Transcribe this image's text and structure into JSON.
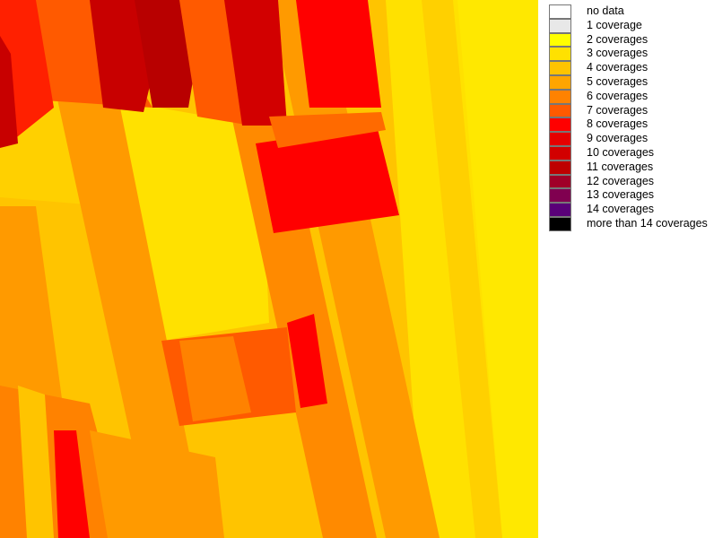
{
  "legend": {
    "items": [
      {
        "label": "no data",
        "color": "#ffffff"
      },
      {
        "label": "1 coverage",
        "color": "#e8e8e8"
      },
      {
        "label": "2 coverages",
        "color": "#ffff00"
      },
      {
        "label": "3 coverages",
        "color": "#ffe100"
      },
      {
        "label": "4 coverages",
        "color": "#ffc400"
      },
      {
        "label": "5 coverages",
        "color": "#ffa500"
      },
      {
        "label": "6 coverages",
        "color": "#ff8200"
      },
      {
        "label": "7 coverages",
        "color": "#ff5a00"
      },
      {
        "label": "8 coverages",
        "color": "#ff0000"
      },
      {
        "label": "9 coverages",
        "color": "#e60000"
      },
      {
        "label": "10 coverages",
        "color": "#d20000"
      },
      {
        "label": "11 coverages",
        "color": "#be0000"
      },
      {
        "label": "12 coverages",
        "color": "#a00028"
      },
      {
        "label": "13 coverages",
        "color": "#800050"
      },
      {
        "label": "14 coverages",
        "color": "#5a0078"
      },
      {
        "label": "more than 14 coverages",
        "color": "#000000"
      }
    ]
  }
}
